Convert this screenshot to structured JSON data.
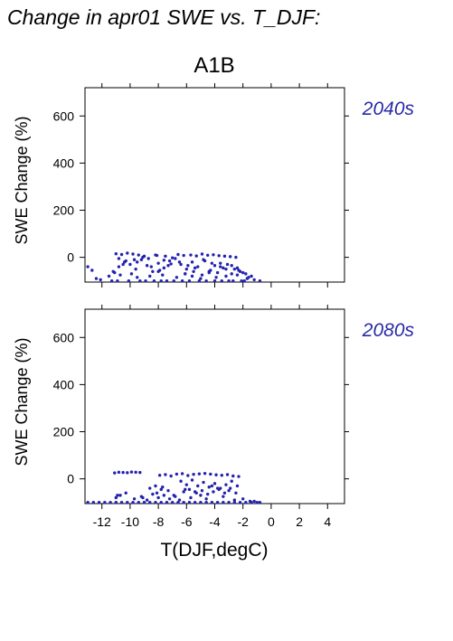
{
  "figure": {
    "title": "Change in apr01 SWE vs. T_DJF:",
    "scenario": "A1B",
    "xlabel": "T(DJF,degC)",
    "ylabel": "SWE Change (%)"
  },
  "colors": {
    "points": "#2323b0",
    "axis": "#000000",
    "period_label": "#2a2aa8"
  },
  "chart_data": [
    {
      "type": "scatter",
      "panel_label": "2040s",
      "xlabel": "T(DJF,degC)",
      "ylabel": "SWE Change (%)",
      "xlim": [
        -13.2,
        5.2
      ],
      "ylim": [
        -105,
        720
      ],
      "x_ticks": [
        -12,
        -10,
        -8,
        -6,
        -4,
        -2,
        0,
        2,
        4
      ],
      "y_ticks": [
        0,
        200,
        400,
        600
      ],
      "x_tick_labels_shown": false,
      "series": [
        {
          "x": [
            -13,
            -12.7,
            -12.4,
            -12.1,
            -11.5,
            -11.2,
            -10.8,
            -10.4,
            -10,
            -9.6,
            -9.2,
            -8.8,
            -8.4,
            -8,
            -7.6,
            -7.2,
            -6.8,
            -6.4,
            -6,
            -5.6,
            -5.2,
            -4.8,
            -4.4,
            -4,
            -3.6,
            -3.2,
            -2.8,
            -2.4,
            -2,
            -1.6,
            -1.2,
            -0.8,
            -11,
            -10.6,
            -10.2,
            -9.8,
            -9.4,
            -9,
            -10.8,
            -10.3,
            -9.7,
            -9.1,
            -10.5,
            -9.5,
            -8.7,
            -8.1,
            -7.6,
            -7.1,
            -8.5,
            -7.9,
            -7.3,
            -8.2,
            -7.5,
            -7,
            -6.6,
            -6.2,
            -5.7,
            -5.3,
            -4.9,
            -4.5,
            -4.1,
            -3.7,
            -3.3,
            -2.9,
            -2.5,
            -6.5,
            -5.9,
            -5.4,
            -4.7,
            -4.2,
            -3.6,
            -3.1,
            -2.6,
            -2.2,
            -6.1,
            -5.5,
            -4.9,
            -4.3,
            -3.8,
            -3.4,
            -2.8,
            -2.3,
            -1.8,
            -1.4,
            -11.3,
            -10.9,
            -10.1,
            -9.3,
            -8.9,
            -8.3,
            -7.8,
            -7.4,
            -6.9,
            -6.3,
            -5.8,
            -5.1,
            -4.6,
            -4,
            -3.5,
            -3,
            -2.7,
            -2.1,
            -1.9,
            -11.1,
            -10.7,
            -9.9,
            -9.5,
            -8.6,
            -8,
            -7.7,
            -6.7,
            -6.1,
            -5.6,
            -5,
            -4.4,
            -3.9,
            -3.2,
            -2.4,
            -1.7
          ],
          "y": [
            -40,
            -55,
            -90,
            -95,
            -80,
            -60,
            -40,
            -20,
            -30,
            -50,
            -10,
            -35,
            -60,
            -25,
            -45,
            -15,
            -5,
            -30,
            -50,
            -20,
            -40,
            -10,
            -60,
            -35,
            -25,
            -50,
            -70,
            -45,
            -65,
            -85,
            -95,
            -100,
            15,
            12,
            18,
            14,
            10,
            5,
            -5,
            -15,
            -10,
            0,
            -30,
            -20,
            -5,
            8,
            -12,
            -28,
            -40,
            -55,
            -35,
            10,
            5,
            -2,
            12,
            8,
            10,
            6,
            14,
            9,
            11,
            7,
            5,
            3,
            0,
            -20,
            -35,
            -45,
            -15,
            -25,
            -40,
            -30,
            -50,
            -60,
            -70,
            -60,
            -75,
            -55,
            -65,
            -45,
            -35,
            -55,
            -70,
            -80,
            -100,
            -100,
            -100,
            -100,
            -100,
            -100,
            -100,
            -100,
            -100,
            -100,
            -100,
            -100,
            -100,
            -100,
            -100,
            -100,
            -100,
            -100,
            -100,
            -65,
            -75,
            -70,
            -85,
            -80,
            -60,
            -75,
            -85,
            -70,
            -80,
            -90,
            -65,
            -85,
            -80,
            -75,
            -90
          ]
        }
      ]
    },
    {
      "type": "scatter",
      "panel_label": "2080s",
      "xlabel": "T(DJF,degC)",
      "ylabel": "SWE Change (%)",
      "xlim": [
        -13.2,
        5.2
      ],
      "ylim": [
        -105,
        720
      ],
      "x_ticks": [
        -12,
        -10,
        -8,
        -6,
        -4,
        -2,
        0,
        2,
        4
      ],
      "x_tick_labels": [
        "-12",
        "-10",
        "-8",
        "-6",
        "-4",
        "-2",
        "0",
        "2",
        "4"
      ],
      "y_ticks": [
        0,
        200,
        400,
        600
      ],
      "series": [
        {
          "x": [
            -13,
            -12.6,
            -12.2,
            -11.8,
            -11.4,
            -11,
            -10.6,
            -10.2,
            -9.8,
            -9.4,
            -9,
            -8.6,
            -8.2,
            -7.8,
            -7.4,
            -7,
            -6.6,
            -6.2,
            -5.8,
            -5.4,
            -5,
            -4.6,
            -4.2,
            -3.8,
            -3.4,
            -3,
            -2.6,
            -2.2,
            -1.8,
            -1.4,
            -1,
            -0.8,
            -11.1,
            -10.8,
            -10.5,
            -10.2,
            -9.9,
            -9.6,
            -9.3,
            -7.9,
            -7.5,
            -7.1,
            -6.7,
            -6.3,
            -5.9,
            -5.5,
            -5.1,
            -4.7,
            -4.3,
            -3.9,
            -3.5,
            -3.1,
            -2.7,
            -2.3,
            -6.4,
            -6,
            -5.6,
            -5.2,
            -4.8,
            -4.4,
            -4,
            -3.6,
            -3.2,
            -2.8,
            -2.4,
            -6.2,
            -5.8,
            -5.3,
            -4.9,
            -4.5,
            -4.1,
            -3.7,
            -3.3,
            -2.9,
            -11,
            -10.7,
            -10.3,
            -9.7,
            -9.2,
            -8.8,
            -8.4,
            -8,
            -7.6,
            -7.2,
            -6.8,
            -6.5,
            -5.7,
            -5,
            -4.6,
            -3.4,
            -2.6,
            -2,
            -1.5,
            -1.2,
            -8.2,
            -7.8,
            -7.3,
            -8.6,
            -8.1,
            -7.7,
            -6.9,
            -6.1,
            -5.4,
            -4.2,
            -3.8,
            -3,
            -2.5,
            -10.9,
            -9.1
          ],
          "y": [
            -100,
            -100,
            -100,
            -100,
            -100,
            -100,
            -100,
            -100,
            -100,
            -100,
            -100,
            -100,
            -100,
            -100,
            -100,
            -100,
            -100,
            -100,
            -100,
            -100,
            -100,
            -100,
            -100,
            -100,
            -100,
            -100,
            -100,
            -100,
            -100,
            -100,
            -100,
            -100,
            25,
            28,
            27,
            26,
            29,
            28,
            27,
            15,
            18,
            12,
            20,
            22,
            14,
            19,
            21,
            23,
            20,
            17,
            15,
            18,
            12,
            10,
            -10,
            -25,
            -5,
            -30,
            -15,
            -35,
            -20,
            -40,
            -25,
            -10,
            -30,
            -55,
            -45,
            -60,
            -50,
            -65,
            -55,
            -45,
            -60,
            -40,
            -80,
            -70,
            -60,
            -85,
            -75,
            -90,
            -65,
            -80,
            -70,
            -85,
            -75,
            -90,
            -80,
            -70,
            -85,
            -75,
            -90,
            -85,
            -95,
            -95,
            -30,
            -45,
            -50,
            -40,
            -60,
            -35,
            -70,
            -45,
            -55,
            -30,
            -40,
            -50,
            -60,
            -70,
            -80
          ]
        }
      ]
    }
  ]
}
